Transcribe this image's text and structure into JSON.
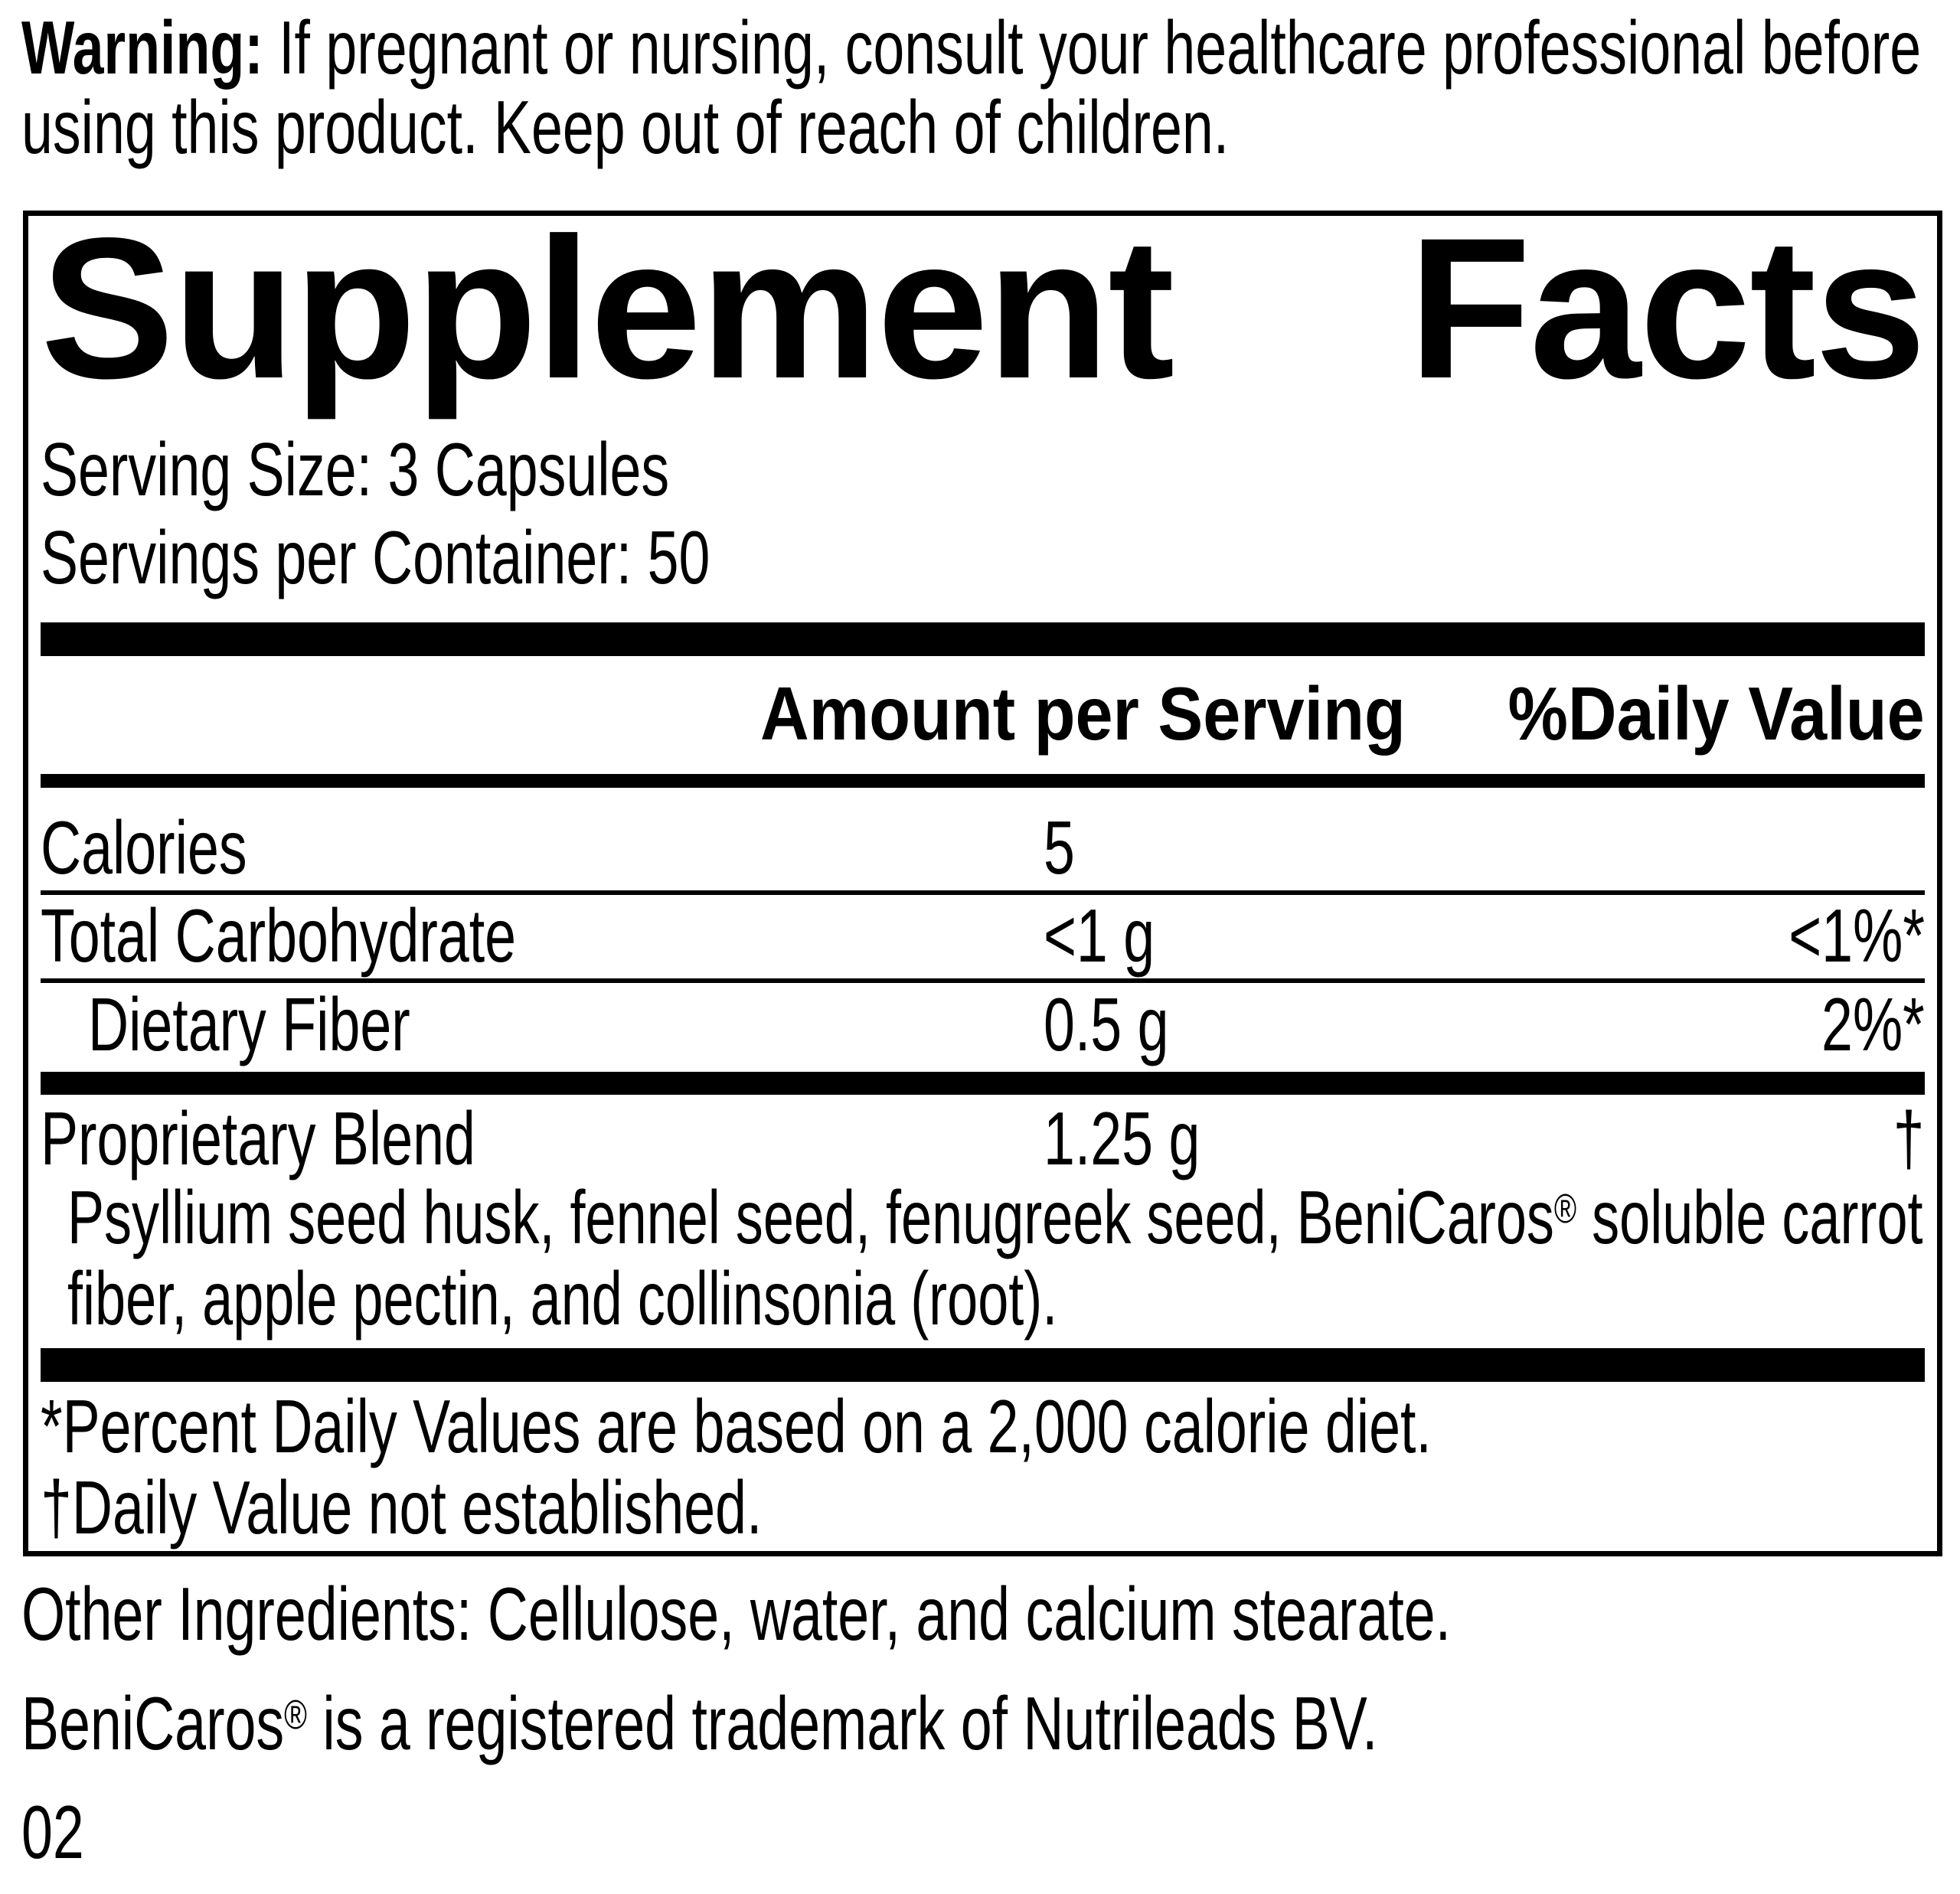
{
  "warning": {
    "label": "Warning:",
    "text": " If pregnant or nursing, consult your healthcare professional before using this product. Keep out of reach of children."
  },
  "panel": {
    "title": "Supplement Facts",
    "serving_size": "Serving Size: 3 Capsules",
    "servings_per_container": "Servings per Container: 50",
    "header": {
      "amount": "Amount per Serving",
      "daily_value": "%Daily Value"
    },
    "rows": [
      {
        "name": "Calories",
        "amount": "5",
        "daily_value": ""
      },
      {
        "name": "Total Carbohydrate",
        "amount": "<1 g",
        "daily_value": "<1%*"
      },
      {
        "name": "Dietary Fiber",
        "amount": "0.5 g",
        "daily_value": "2%*"
      }
    ],
    "blend": {
      "name": "Proprietary Blend",
      "amount": "1.25 g",
      "daily_value": "†",
      "description": {
        "part1": "Psyllium seed husk, fennel seed, fenugreek seed, BeniCaros",
        "reg_mark": "®",
        "part2": " soluble carrot fiber, apple pectin, and collinsonia (root)."
      }
    },
    "footnotes": {
      "percent": "*Percent Daily Values are based on a 2,000 calorie diet.",
      "dagger": "†Daily Value not established."
    }
  },
  "other_ingredients": "Other Ingredients: Cellulose, water, and calcium stearate.",
  "trademark": {
    "brand": "BeniCaros",
    "reg_mark": "®",
    "text": " is a registered trademark of Nutrileads BV."
  },
  "code": "02",
  "colors": {
    "ink": "#000000",
    "background": "#ffffff"
  }
}
